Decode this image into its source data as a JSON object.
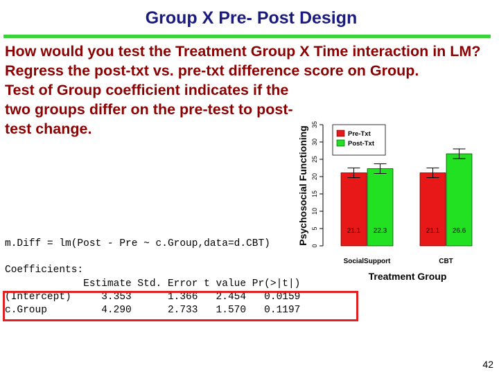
{
  "slide": {
    "title": "Group X Pre- Post Design",
    "paragraphs": [
      "How would you test the Treatment Group X Time interaction in LM?",
      "Regress the post-txt vs. pre-txt difference score on Group.",
      "Test of Group coefficient indicates if the two groups differ on the pre-test to post-test change."
    ],
    "code_line": "m.Diff = lm(Post - Pre ~ c.Group,data=d.CBT)",
    "coef_title": "Coefficients:",
    "coef_header": "             Estimate Std. Error t value Pr(>|t|)",
    "coef_rows": [
      "(Intercept)     3.353      1.366   2.454   0.0159",
      "c.Group         4.290      2.733   1.570   0.1197"
    ],
    "page_number": "42",
    "colors": {
      "title": "#1a1a80",
      "text": "#8b0000",
      "rule": "#3ad43a",
      "highlight": "#e02020",
      "pre": "#e81818",
      "post": "#22e022"
    }
  },
  "chart_data": {
    "type": "bar",
    "categories": [
      "SocialSupport",
      "CBT"
    ],
    "series": [
      {
        "name": "Pre-Txt",
        "values": [
          21.1,
          21.1
        ],
        "error": [
          1.4,
          1.4
        ],
        "color": "#e81818"
      },
      {
        "name": "Post-Txt",
        "values": [
          22.3,
          26.6
        ],
        "error": [
          1.4,
          1.4
        ],
        "color": "#22e022"
      }
    ],
    "value_labels": [
      [
        "21.1",
        "22.3"
      ],
      [
        "21.1",
        "26.6"
      ]
    ],
    "xlabel": "Treatment Group",
    "ylabel": "Psychosocial Functioning",
    "ylim": [
      0,
      35
    ],
    "yticks": [
      "0",
      "5",
      "10",
      "15",
      "20",
      "25",
      "30",
      "35"
    ],
    "legend_placement": "top-left"
  }
}
